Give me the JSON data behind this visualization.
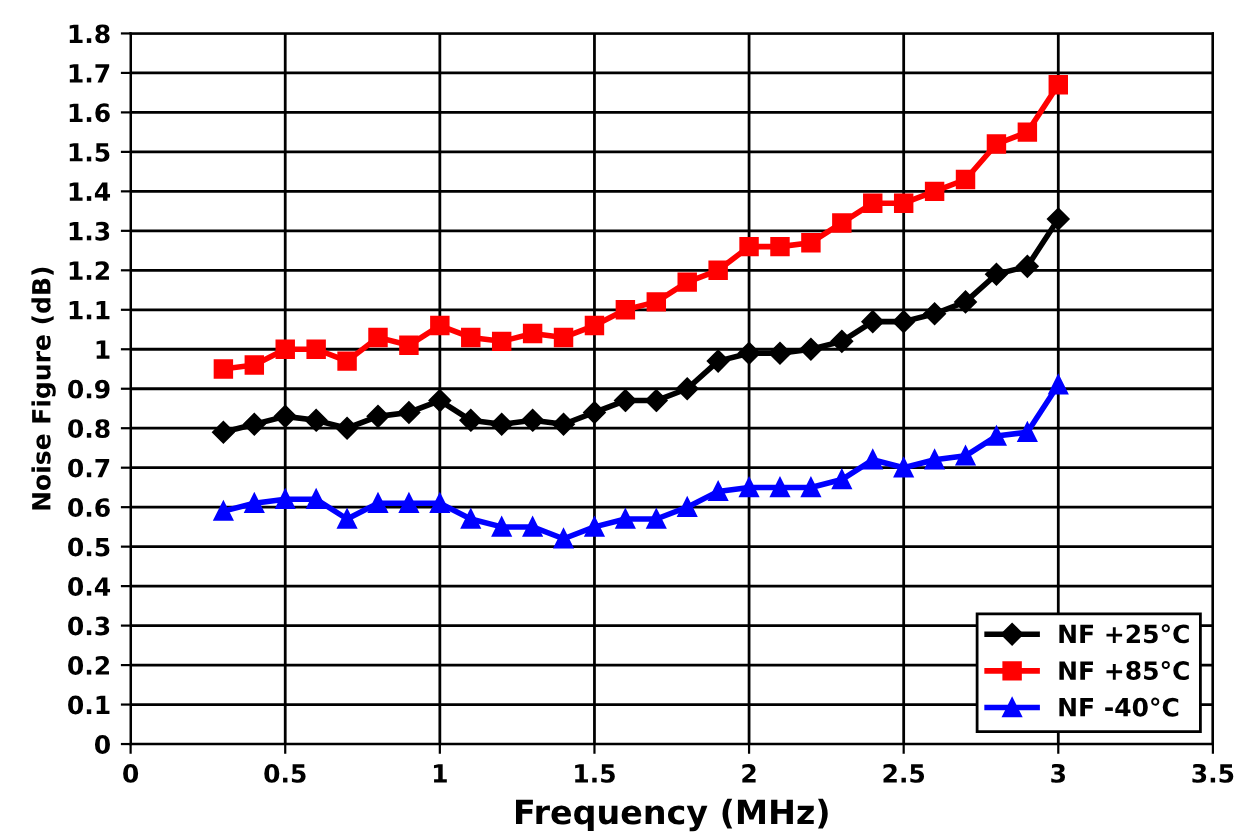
{
  "chart_data": {
    "type": "line",
    "xlabel": "Frequency (MHz)",
    "ylabel": "Noise Figure (dB)",
    "x": [
      0.3,
      0.4,
      0.5,
      0.6,
      0.7,
      0.8,
      0.9,
      1.0,
      1.1,
      1.2,
      1.3,
      1.4,
      1.5,
      1.6,
      1.7,
      1.8,
      1.9,
      2.0,
      2.1,
      2.2,
      2.3,
      2.4,
      2.5,
      2.6,
      2.7,
      2.8,
      2.9,
      3.0
    ],
    "series": [
      {
        "name": "NF +25°C",
        "color": "#000000",
        "marker": "diamond",
        "values": [
          0.79,
          0.81,
          0.83,
          0.82,
          0.8,
          0.83,
          0.84,
          0.87,
          0.82,
          0.81,
          0.82,
          0.81,
          0.84,
          0.87,
          0.87,
          0.9,
          0.97,
          0.99,
          0.99,
          1.0,
          1.02,
          1.07,
          1.07,
          1.09,
          1.12,
          1.19,
          1.21,
          1.33
        ]
      },
      {
        "name": "NF +85°C",
        "color": "#ff0000",
        "marker": "square",
        "values": [
          0.95,
          0.96,
          1.0,
          1.0,
          0.97,
          1.03,
          1.01,
          1.06,
          1.03,
          1.02,
          1.04,
          1.03,
          1.06,
          1.1,
          1.12,
          1.17,
          1.2,
          1.26,
          1.26,
          1.27,
          1.32,
          1.37,
          1.37,
          1.4,
          1.43,
          1.52,
          1.55,
          1.67
        ]
      },
      {
        "name": "NF -40°C",
        "color": "#0000ff",
        "marker": "triangle",
        "values": [
          0.59,
          0.61,
          0.62,
          0.62,
          0.57,
          0.61,
          0.61,
          0.61,
          0.57,
          0.55,
          0.55,
          0.52,
          0.55,
          0.57,
          0.57,
          0.6,
          0.64,
          0.65,
          0.65,
          0.65,
          0.67,
          0.72,
          0.7,
          0.72,
          0.73,
          0.78,
          0.79,
          0.91
        ]
      }
    ],
    "xlim": [
      0,
      3.5
    ],
    "xticks": [
      0,
      0.5,
      1,
      1.5,
      2,
      2.5,
      3,
      3.5
    ],
    "ylim": [
      0,
      1.8
    ],
    "yticks": [
      0,
      0.1,
      0.2,
      0.3,
      0.4,
      0.5,
      0.6,
      0.7,
      0.8,
      0.9,
      1,
      1.1,
      1.2,
      1.3,
      1.4,
      1.5,
      1.6,
      1.7,
      1.8
    ],
    "grid": true,
    "legend": "bottom right",
    "line_style": "solid"
  }
}
